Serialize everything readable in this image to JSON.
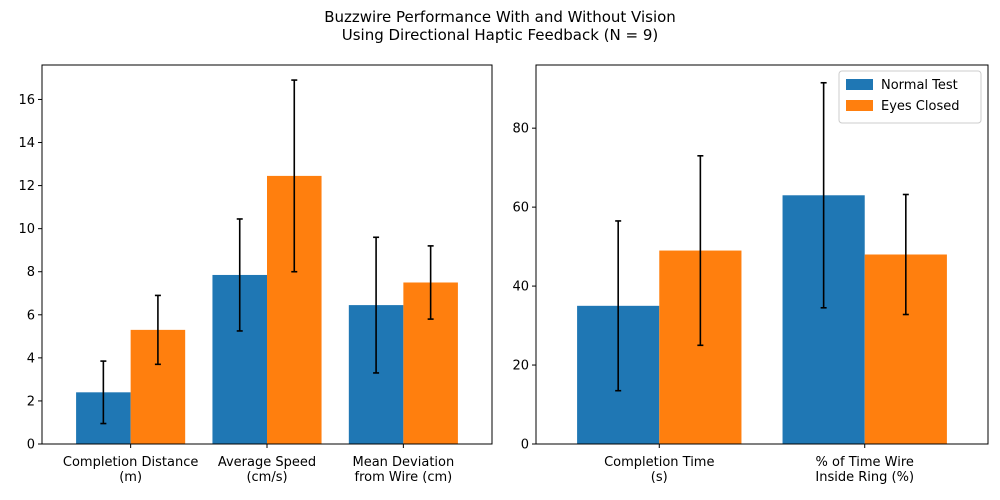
{
  "figure": {
    "title_line1": "Buzzwire Performance With and Without Vision",
    "title_line2": "Using Directional Haptic Feedback (N = 9)"
  },
  "colors": {
    "series_normal": "#1f77b4",
    "series_closed": "#ff7f0e",
    "error_bar": "#000000"
  },
  "chart_data": [
    {
      "type": "bar",
      "categories": [
        [
          "Completion Distance",
          "(m)"
        ],
        [
          "Average Speed",
          "(cm/s)"
        ],
        [
          "Mean Deviation",
          "from Wire (cm)"
        ]
      ],
      "series": [
        {
          "name": "Normal Test",
          "values": [
            2.4,
            7.85,
            6.45
          ],
          "error": [
            1.45,
            2.6,
            3.15
          ]
        },
        {
          "name": "Eyes Closed",
          "values": [
            5.3,
            12.45,
            7.5
          ],
          "error": [
            1.6,
            4.45,
            1.7
          ]
        }
      ],
      "ylim": [
        0,
        17.6
      ],
      "yticks": [
        0,
        2,
        4,
        6,
        8,
        10,
        12,
        14,
        16
      ],
      "legend": false
    },
    {
      "type": "bar",
      "categories": [
        [
          "Completion Time",
          "(s)"
        ],
        [
          "% of Time Wire",
          "Inside Ring (%)"
        ]
      ],
      "series": [
        {
          "name": "Normal Test",
          "values": [
            35,
            63
          ],
          "error": [
            21.5,
            28.5
          ]
        },
        {
          "name": "Eyes Closed",
          "values": [
            49,
            48
          ],
          "error": [
            24,
            15.2
          ]
        }
      ],
      "ylim": [
        0,
        96
      ],
      "yticks": [
        0,
        20,
        40,
        60,
        80
      ],
      "legend": true,
      "legend_position": "top-right"
    }
  ]
}
